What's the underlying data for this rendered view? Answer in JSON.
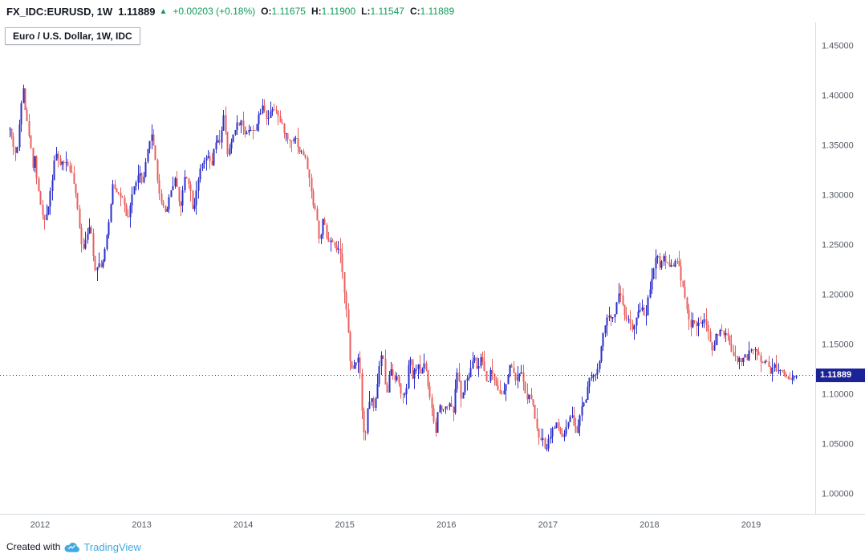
{
  "header": {
    "symbol_interval": "FX_IDC:EURUSD, 1W",
    "last": "1.11889",
    "arrow": "▲",
    "change": "+0.00203 (+0.18%)",
    "ohlc": [
      {
        "label": "O:",
        "value": "1.11675"
      },
      {
        "label": "H:",
        "value": "1.11900"
      },
      {
        "label": "L:",
        "value": "1.11547"
      },
      {
        "label": "C:",
        "value": "1.11889"
      }
    ]
  },
  "legend": {
    "text": "Euro / U.S. Dollar, 1W, IDC"
  },
  "price_label": {
    "value": "1.11889"
  },
  "footer": {
    "created_with": "Created with",
    "brand": "TradingView"
  },
  "colors": {
    "green": "#109d58",
    "up": "#2b2fc9",
    "down": "#e9605f",
    "price-line": "#2b2fc9",
    "price-label-bg": "#1c2397",
    "axis-text": "#555b66",
    "axis-line": "#d9dce3",
    "brand-blue": "#3fa9e0"
  },
  "chart_data": {
    "type": "candlestick",
    "title": "Euro / U.S. Dollar, 1W, IDC",
    "symbol": "FX_IDC:EURUSD",
    "interval": "1W",
    "grid": false,
    "legend_position": "top-left",
    "x_ticks": [
      "2012",
      "2013",
      "2014",
      "2015",
      "2016",
      "2017",
      "2018",
      "2019"
    ],
    "y_ticks": [
      "1.00000",
      "1.05000",
      "1.10000",
      "1.15000",
      "1.20000",
      "1.25000",
      "1.30000",
      "1.35000",
      "1.40000",
      "1.45000"
    ],
    "x_range": [
      2011.605,
      2019.632
    ],
    "y_range": [
      0.9798,
      1.4734
    ],
    "t_start": 2011.7,
    "t_end": 2019.46,
    "week_step": 0.0191644,
    "current_price": 1.11889,
    "last_candle": {
      "open": 1.11675,
      "high": 1.119,
      "low": 1.11547,
      "close": 1.11889
    },
    "anchors": [
      [
        2011.7,
        1.366
      ],
      [
        2011.74,
        1.349
      ],
      [
        2011.77,
        1.338
      ],
      [
        2011.81,
        1.389
      ],
      [
        2011.83,
        1.415
      ],
      [
        2011.86,
        1.379
      ],
      [
        2011.89,
        1.363
      ],
      [
        2011.93,
        1.33
      ],
      [
        2011.95,
        1.339
      ],
      [
        2011.98,
        1.305
      ],
      [
        2012.0,
        1.296
      ],
      [
        2012.04,
        1.27
      ],
      [
        2012.08,
        1.289
      ],
      [
        2012.12,
        1.316
      ],
      [
        2012.15,
        1.345
      ],
      [
        2012.19,
        1.33
      ],
      [
        2012.23,
        1.334
      ],
      [
        2012.27,
        1.331
      ],
      [
        2012.31,
        1.322
      ],
      [
        2012.34,
        1.308
      ],
      [
        2012.38,
        1.278
      ],
      [
        2012.42,
        1.243
      ],
      [
        2012.46,
        1.264
      ],
      [
        2012.5,
        1.266
      ],
      [
        2012.54,
        1.225
      ],
      [
        2012.57,
        1.232
      ],
      [
        2012.61,
        1.229
      ],
      [
        2012.65,
        1.251
      ],
      [
        2012.69,
        1.282
      ],
      [
        2012.71,
        1.313
      ],
      [
        2012.76,
        1.304
      ],
      [
        2012.82,
        1.294
      ],
      [
        2012.86,
        1.271
      ],
      [
        2012.9,
        1.298
      ],
      [
        2012.95,
        1.316
      ],
      [
        2012.99,
        1.322
      ],
      [
        2013.01,
        1.307
      ],
      [
        2013.05,
        1.337
      ],
      [
        2013.09,
        1.364
      ],
      [
        2013.13,
        1.344
      ],
      [
        2013.17,
        1.302
      ],
      [
        2013.24,
        1.282
      ],
      [
        2013.28,
        1.302
      ],
      [
        2013.31,
        1.311
      ],
      [
        2013.34,
        1.317
      ],
      [
        2013.38,
        1.284
      ],
      [
        2013.43,
        1.322
      ],
      [
        2013.47,
        1.312
      ],
      [
        2013.51,
        1.283
      ],
      [
        2013.55,
        1.314
      ],
      [
        2013.59,
        1.328
      ],
      [
        2013.64,
        1.338
      ],
      [
        2013.7,
        1.33
      ],
      [
        2013.72,
        1.352
      ],
      [
        2013.77,
        1.354
      ],
      [
        2013.81,
        1.38
      ],
      [
        2013.85,
        1.337
      ],
      [
        2013.89,
        1.356
      ],
      [
        2013.93,
        1.37
      ],
      [
        2013.98,
        1.374
      ],
      [
        2014.02,
        1.362
      ],
      [
        2014.06,
        1.367
      ],
      [
        2014.1,
        1.363
      ],
      [
        2014.14,
        1.374
      ],
      [
        2014.16,
        1.38
      ],
      [
        2014.2,
        1.391
      ],
      [
        2014.24,
        1.375
      ],
      [
        2014.28,
        1.388
      ],
      [
        2014.33,
        1.387
      ],
      [
        2014.35,
        1.376
      ],
      [
        2014.41,
        1.363
      ],
      [
        2014.45,
        1.354
      ],
      [
        2014.51,
        1.359
      ],
      [
        2014.56,
        1.343
      ],
      [
        2014.6,
        1.341
      ],
      [
        2014.64,
        1.324
      ],
      [
        2014.68,
        1.295
      ],
      [
        2014.72,
        1.283
      ],
      [
        2014.75,
        1.252
      ],
      [
        2014.79,
        1.276
      ],
      [
        2014.83,
        1.253
      ],
      [
        2014.87,
        1.253
      ],
      [
        2014.91,
        1.245
      ],
      [
        2014.95,
        1.246
      ],
      [
        2014.98,
        1.218
      ],
      [
        2015.02,
        1.184
      ],
      [
        2015.06,
        1.121
      ],
      [
        2015.1,
        1.132
      ],
      [
        2015.14,
        1.139
      ],
      [
        2015.17,
        1.084
      ],
      [
        2015.2,
        1.05
      ],
      [
        2015.22,
        1.082
      ],
      [
        2015.26,
        1.098
      ],
      [
        2015.29,
        1.081
      ],
      [
        2015.33,
        1.12
      ],
      [
        2015.37,
        1.145
      ],
      [
        2015.41,
        1.099
      ],
      [
        2015.45,
        1.127
      ],
      [
        2015.49,
        1.117
      ],
      [
        2015.52,
        1.116
      ],
      [
        2015.56,
        1.099
      ],
      [
        2015.6,
        1.097
      ],
      [
        2015.64,
        1.139
      ],
      [
        2015.67,
        1.115
      ],
      [
        2015.71,
        1.13
      ],
      [
        2015.75,
        1.121
      ],
      [
        2015.79,
        1.135
      ],
      [
        2015.83,
        1.1
      ],
      [
        2015.87,
        1.077
      ],
      [
        2015.9,
        1.059
      ],
      [
        2015.92,
        1.088
      ],
      [
        2015.96,
        1.087
      ],
      [
        2015.99,
        1.086
      ],
      [
        2016.03,
        1.092
      ],
      [
        2016.07,
        1.083
      ],
      [
        2016.11,
        1.126
      ],
      [
        2016.15,
        1.093
      ],
      [
        2016.19,
        1.115
      ],
      [
        2016.23,
        1.117
      ],
      [
        2016.27,
        1.14
      ],
      [
        2016.31,
        1.122
      ],
      [
        2016.34,
        1.14
      ],
      [
        2016.38,
        1.122
      ],
      [
        2016.4,
        1.111
      ],
      [
        2016.44,
        1.125
      ],
      [
        2016.48,
        1.112
      ],
      [
        2016.52,
        1.105
      ],
      [
        2016.55,
        1.098
      ],
      [
        2016.59,
        1.109
      ],
      [
        2016.63,
        1.133
      ],
      [
        2016.67,
        1.116
      ],
      [
        2016.71,
        1.116
      ],
      [
        2016.75,
        1.124
      ],
      [
        2016.78,
        1.097
      ],
      [
        2016.82,
        1.099
      ],
      [
        2016.86,
        1.086
      ],
      [
        2016.9,
        1.059
      ],
      [
        2016.94,
        1.056
      ],
      [
        2016.98,
        1.045
      ],
      [
        2017.0,
        1.052
      ],
      [
        2017.04,
        1.064
      ],
      [
        2017.08,
        1.07
      ],
      [
        2017.11,
        1.064
      ],
      [
        2017.15,
        1.056
      ],
      [
        2017.19,
        1.067
      ],
      [
        2017.23,
        1.08
      ],
      [
        2017.27,
        1.059
      ],
      [
        2017.31,
        1.073
      ],
      [
        2017.33,
        1.09
      ],
      [
        2017.37,
        1.093
      ],
      [
        2017.4,
        1.117
      ],
      [
        2017.44,
        1.12
      ],
      [
        2017.48,
        1.119
      ],
      [
        2017.52,
        1.14
      ],
      [
        2017.55,
        1.166
      ],
      [
        2017.59,
        1.177
      ],
      [
        2017.63,
        1.176
      ],
      [
        2017.67,
        1.186
      ],
      [
        2017.69,
        1.204
      ],
      [
        2017.73,
        1.195
      ],
      [
        2017.77,
        1.173
      ],
      [
        2017.8,
        1.178
      ],
      [
        2017.84,
        1.161
      ],
      [
        2017.88,
        1.179
      ],
      [
        2017.92,
        1.19
      ],
      [
        2017.96,
        1.175
      ],
      [
        2017.99,
        1.2
      ],
      [
        2018.03,
        1.22
      ],
      [
        2018.07,
        1.243
      ],
      [
        2018.11,
        1.225
      ],
      [
        2018.13,
        1.241
      ],
      [
        2018.17,
        1.232
      ],
      [
        2018.21,
        1.229
      ],
      [
        2018.25,
        1.232
      ],
      [
        2018.28,
        1.233
      ],
      [
        2018.32,
        1.213
      ],
      [
        2018.36,
        1.194
      ],
      [
        2018.4,
        1.165
      ],
      [
        2018.44,
        1.177
      ],
      [
        2018.47,
        1.166
      ],
      [
        2018.51,
        1.174
      ],
      [
        2018.55,
        1.172
      ],
      [
        2018.59,
        1.157
      ],
      [
        2018.62,
        1.144
      ],
      [
        2018.66,
        1.16
      ],
      [
        2018.7,
        1.162
      ],
      [
        2018.74,
        1.16
      ],
      [
        2018.78,
        1.156
      ],
      [
        2018.82,
        1.14
      ],
      [
        2018.86,
        1.134
      ],
      [
        2018.9,
        1.134
      ],
      [
        2018.93,
        1.138
      ],
      [
        2018.97,
        1.137
      ],
      [
        2018.99,
        1.144
      ],
      [
        2019.03,
        1.147
      ],
      [
        2019.07,
        1.141
      ],
      [
        2019.11,
        1.132
      ],
      [
        2019.15,
        1.134
      ],
      [
        2019.19,
        1.123
      ],
      [
        2019.23,
        1.13
      ],
      [
        2019.26,
        1.122
      ],
      [
        2019.3,
        1.124
      ],
      [
        2019.34,
        1.12
      ],
      [
        2019.38,
        1.116
      ],
      [
        2019.41,
        1.117
      ],
      [
        2019.44,
        1.121
      ],
      [
        2019.46,
        1.1189
      ]
    ]
  }
}
